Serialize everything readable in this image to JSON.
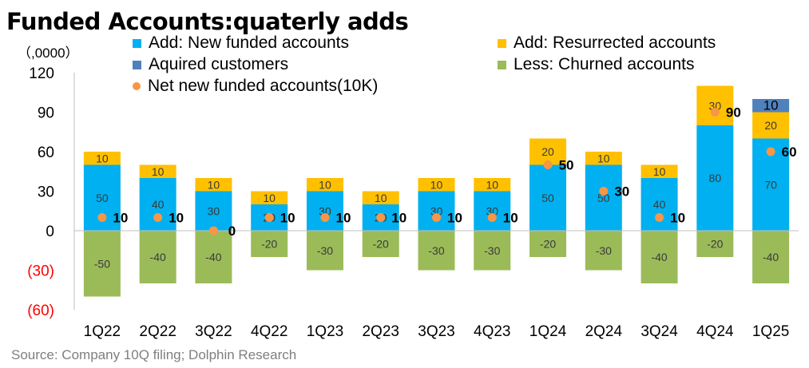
{
  "title": "Funded Accounts:quaterly adds",
  "unit_label": "（,0000）",
  "source": "Source: Company 10Q filing; Dolphin Research",
  "legend": [
    {
      "name": "Add: New funded accounts",
      "color": "#00b0f0",
      "kind": "square"
    },
    {
      "name": "Add: Resurrected accounts",
      "color": "#ffc000",
      "kind": "square"
    },
    {
      "name": "Aquired customers",
      "color": "#4f81bd",
      "kind": "square"
    },
    {
      "name": "Less: Churned accounts",
      "color": "#9bbb59",
      "kind": "square"
    },
    {
      "name": "Net new funded accounts(10K)",
      "color": "#f79646",
      "kind": "dot"
    }
  ],
  "chart_data": {
    "type": "bar",
    "stacked": true,
    "title": "Funded Accounts:quaterly adds",
    "categories": [
      "1Q22",
      "2Q22",
      "3Q22",
      "4Q22",
      "1Q23",
      "2Q23",
      "3Q23",
      "4Q23",
      "1Q24",
      "2Q24",
      "3Q24",
      "4Q24",
      "1Q25"
    ],
    "y_ticks": [
      "120",
      "90",
      "60",
      "30",
      "0",
      "(30)",
      "(60)"
    ],
    "ylim": [
      -60,
      120
    ],
    "series": [
      {
        "name": "Add: New funded accounts",
        "type": "bar",
        "color": "#00b0f0",
        "values": [
          50,
          40,
          30,
          20,
          30,
          20,
          30,
          30,
          50,
          50,
          40,
          80,
          70
        ]
      },
      {
        "name": "Add: Resurrected accounts",
        "type": "bar",
        "color": "#ffc000",
        "values": [
          10,
          10,
          10,
          10,
          10,
          10,
          10,
          10,
          20,
          10,
          10,
          30,
          20
        ]
      },
      {
        "name": "Aquired customers",
        "type": "bar",
        "color": "#4f81bd",
        "values": [
          0,
          0,
          0,
          0,
          0,
          0,
          0,
          0,
          0,
          0,
          0,
          0,
          10
        ]
      },
      {
        "name": "Less: Churned accounts",
        "type": "bar",
        "color": "#9bbb59",
        "values": [
          -50,
          -40,
          -40,
          -20,
          -30,
          -20,
          -30,
          -30,
          -20,
          -30,
          -40,
          -20,
          -40
        ]
      },
      {
        "name": "Net new funded accounts(10K)",
        "type": "scatter",
        "color": "#f79646",
        "values": [
          10,
          10,
          0,
          10,
          10,
          10,
          10,
          10,
          50,
          30,
          10,
          90,
          60
        ]
      }
    ],
    "grid": false,
    "legend_position": "top"
  }
}
